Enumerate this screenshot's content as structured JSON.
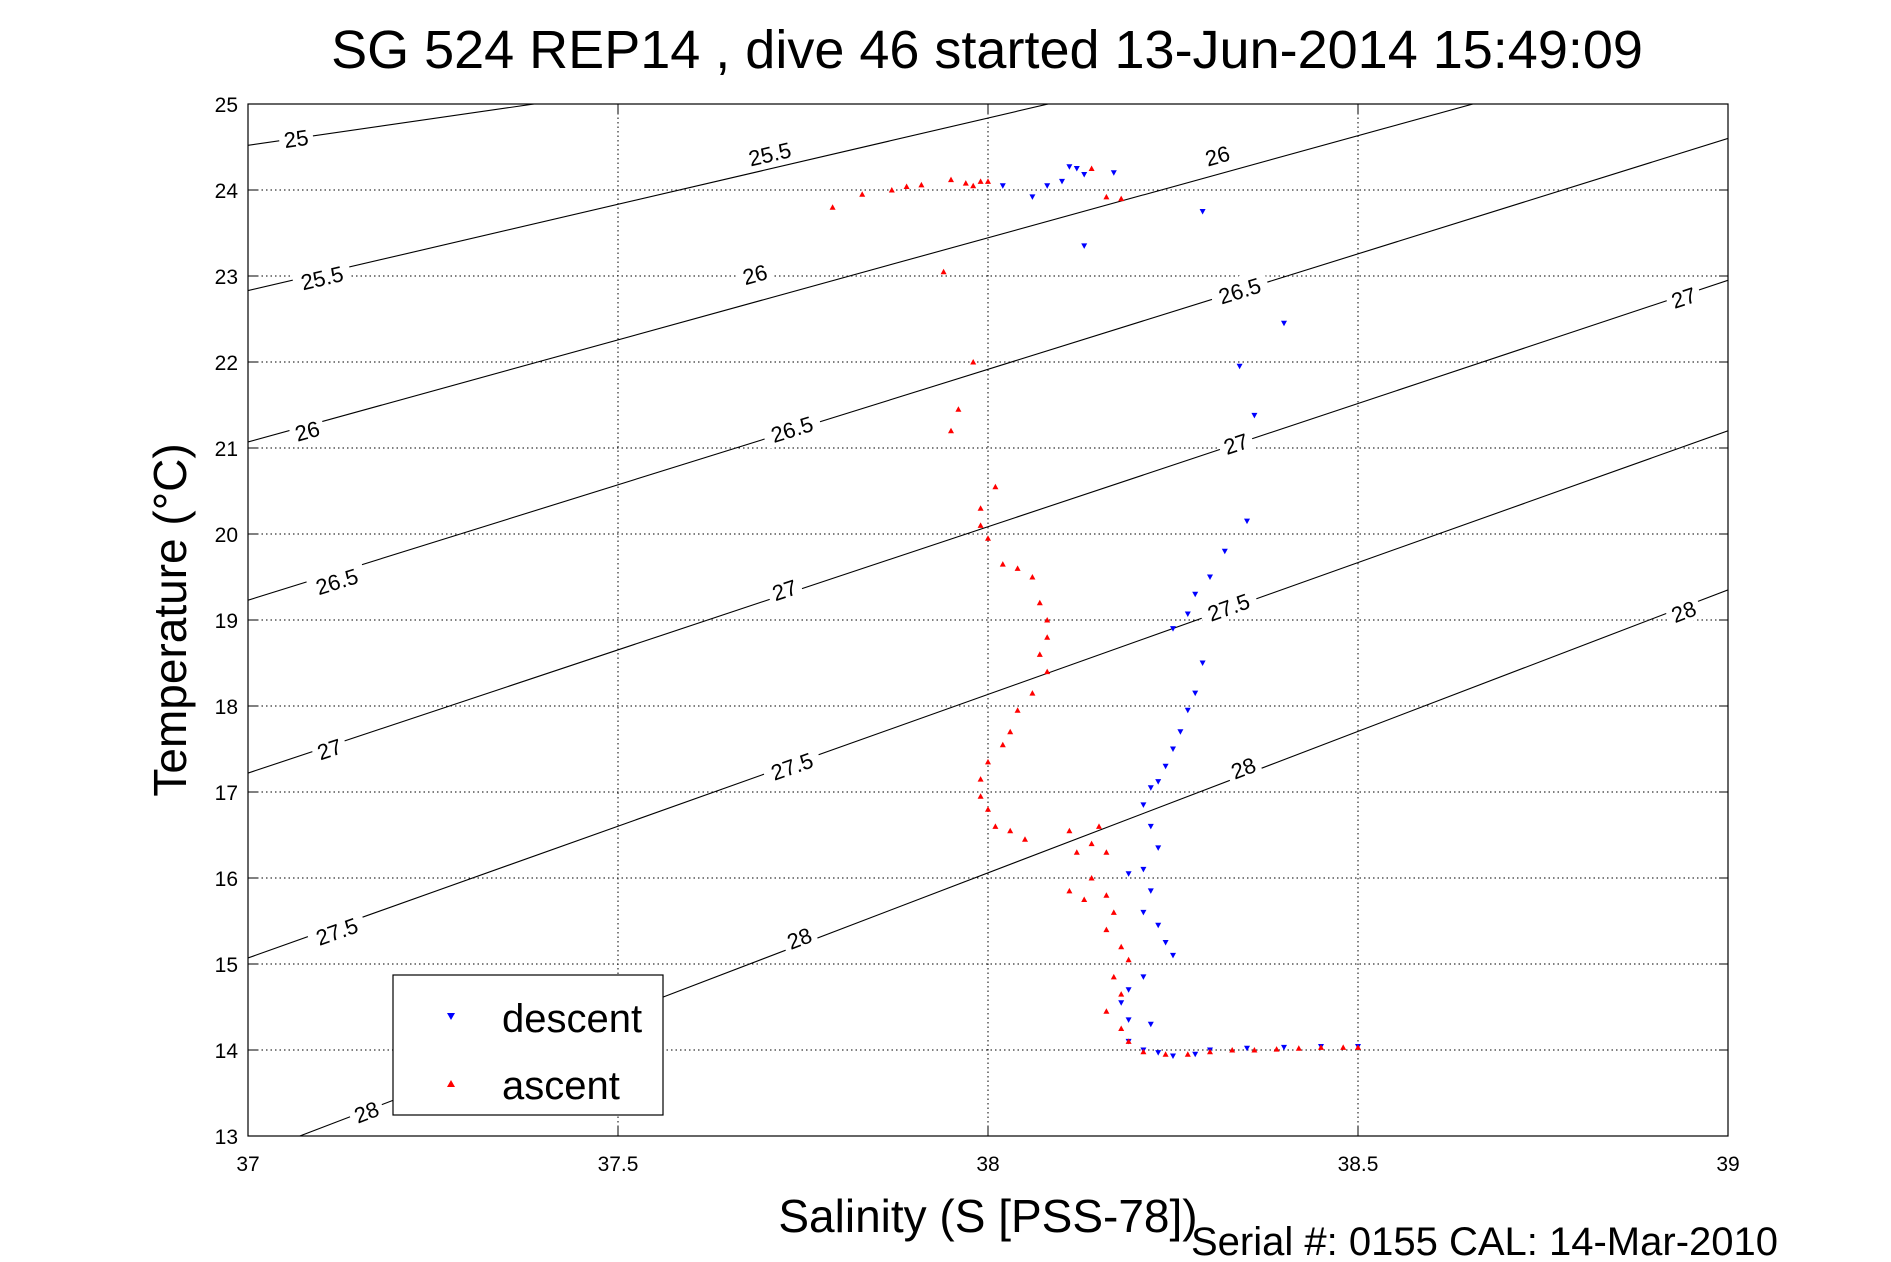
{
  "chart_data": {
    "type": "scatter",
    "title": "SG 524   REP14  , dive 46 started 13-Jun-2014 15:49:09",
    "xlabel": "Salinity (S [PSS-78])",
    "ylabel": "Temperature (°C)",
    "footer": "Serial #: 0155  CAL: 14-Mar-2010",
    "xlim": [
      37,
      39
    ],
    "ylim": [
      13,
      25
    ],
    "x_ticks": [
      37,
      37.5,
      38,
      38.5,
      39
    ],
    "x_tick_labels": [
      "37",
      "37.5",
      "38",
      "38.5",
      "39"
    ],
    "y_ticks": [
      13,
      14,
      15,
      16,
      17,
      18,
      19,
      20,
      21,
      22,
      23,
      24,
      25
    ],
    "y_tick_labels": [
      "13",
      "14",
      "15",
      "16",
      "17",
      "18",
      "19",
      "20",
      "21",
      "22",
      "23",
      "24",
      "25"
    ],
    "grid": true,
    "legend_position": "bottom-left",
    "density_contours": [
      {
        "label": "25",
        "points": [
          [
            37,
            24.52
          ],
          [
            37.95,
            25.7
          ]
        ],
        "label_positions": [
          [
            37.065,
            24.6
          ]
        ]
      },
      {
        "label": "25.5",
        "points": [
          [
            37,
            22.83
          ],
          [
            38.43,
            25.7
          ]
        ],
        "label_positions": [
          [
            37.1,
            22.98
          ],
          [
            37.705,
            24.42
          ]
        ]
      },
      {
        "label": "26",
        "points": [
          [
            37,
            21.07
          ],
          [
            38.95,
            25.7
          ]
        ],
        "label_positions": [
          [
            37.08,
            21.2
          ],
          [
            37.685,
            23.02
          ],
          [
            38.31,
            24.4
          ]
        ]
      },
      {
        "label": "26.5",
        "points": [
          [
            37,
            19.23
          ],
          [
            39,
            24.6
          ]
        ],
        "label_positions": [
          [
            37.12,
            19.45
          ],
          [
            37.735,
            21.22
          ],
          [
            38.34,
            22.83
          ]
        ]
      },
      {
        "label": "27",
        "points": [
          [
            37,
            17.22
          ],
          [
            39,
            22.95
          ]
        ],
        "label_positions": [
          [
            37.11,
            17.5
          ],
          [
            37.725,
            19.35
          ],
          [
            38.335,
            21.05
          ],
          [
            38.94,
            22.75
          ]
        ]
      },
      {
        "label": "27.5",
        "points": [
          [
            37,
            15.07
          ],
          [
            39,
            21.2
          ]
        ],
        "label_positions": [
          [
            37.12,
            15.38
          ],
          [
            37.735,
            17.3
          ],
          [
            38.325,
            19.15
          ]
        ]
      },
      {
        "label": "28",
        "points": [
          [
            37.07,
            13
          ],
          [
            39,
            19.35
          ]
        ],
        "label_positions": [
          [
            37.16,
            13.28
          ],
          [
            37.745,
            15.3
          ],
          [
            38.345,
            17.28
          ],
          [
            38.94,
            19.1
          ]
        ]
      }
    ],
    "series": [
      {
        "name": "descent",
        "color": "#0000ff",
        "marker": "triangle-down",
        "points": [
          [
            38.11,
            24.27
          ],
          [
            38.12,
            24.25
          ],
          [
            38.13,
            24.18
          ],
          [
            38.1,
            24.1
          ],
          [
            38.17,
            24.2
          ],
          [
            38.08,
            24.05
          ],
          [
            38.06,
            23.92
          ],
          [
            38.02,
            24.05
          ],
          [
            38.29,
            23.75
          ],
          [
            38.13,
            23.35
          ],
          [
            38.4,
            22.45
          ],
          [
            38.34,
            21.95
          ],
          [
            38.36,
            21.38
          ],
          [
            38.35,
            20.15
          ],
          [
            38.32,
            19.8
          ],
          [
            38.3,
            19.5
          ],
          [
            38.28,
            19.3
          ],
          [
            38.27,
            19.07
          ],
          [
            38.25,
            18.9
          ],
          [
            38.29,
            18.5
          ],
          [
            38.28,
            18.15
          ],
          [
            38.27,
            17.95
          ],
          [
            38.26,
            17.7
          ],
          [
            38.25,
            17.5
          ],
          [
            38.24,
            17.3
          ],
          [
            38.23,
            17.12
          ],
          [
            38.22,
            17.05
          ],
          [
            38.21,
            16.85
          ],
          [
            38.22,
            16.6
          ],
          [
            38.23,
            16.35
          ],
          [
            38.21,
            16.1
          ],
          [
            38.19,
            16.05
          ],
          [
            38.22,
            15.85
          ],
          [
            38.21,
            15.6
          ],
          [
            38.23,
            15.45
          ],
          [
            38.24,
            15.25
          ],
          [
            38.25,
            15.1
          ],
          [
            38.21,
            14.85
          ],
          [
            38.19,
            14.7
          ],
          [
            38.18,
            14.55
          ],
          [
            38.19,
            14.35
          ],
          [
            38.22,
            14.3
          ],
          [
            38.19,
            14.1
          ],
          [
            38.21,
            14.0
          ],
          [
            38.23,
            13.97
          ],
          [
            38.25,
            13.93
          ],
          [
            38.28,
            13.95
          ],
          [
            38.3,
            14.0
          ],
          [
            38.35,
            14.02
          ],
          [
            38.4,
            14.03
          ],
          [
            38.45,
            14.04
          ],
          [
            38.5,
            14.04
          ]
        ]
      },
      {
        "name": "ascent",
        "color": "#ff0000",
        "marker": "triangle-up",
        "points": [
          [
            37.79,
            23.8
          ],
          [
            37.83,
            23.95
          ],
          [
            37.87,
            24.0
          ],
          [
            37.89,
            24.04
          ],
          [
            37.91,
            24.06
          ],
          [
            37.95,
            24.12
          ],
          [
            37.97,
            24.08
          ],
          [
            37.98,
            24.05
          ],
          [
            38.0,
            24.1
          ],
          [
            37.99,
            24.1
          ],
          [
            38.14,
            24.25
          ],
          [
            38.16,
            23.92
          ],
          [
            38.18,
            23.9
          ],
          [
            37.94,
            23.05
          ],
          [
            37.98,
            22.0
          ],
          [
            37.96,
            21.45
          ],
          [
            37.95,
            21.2
          ],
          [
            38.01,
            20.55
          ],
          [
            37.99,
            20.3
          ],
          [
            37.99,
            20.1
          ],
          [
            38.0,
            19.95
          ],
          [
            38.02,
            19.65
          ],
          [
            38.04,
            19.6
          ],
          [
            38.06,
            19.5
          ],
          [
            38.07,
            19.2
          ],
          [
            38.08,
            19.0
          ],
          [
            38.08,
            18.8
          ],
          [
            38.07,
            18.6
          ],
          [
            38.08,
            18.4
          ],
          [
            38.06,
            18.15
          ],
          [
            38.04,
            17.95
          ],
          [
            38.03,
            17.7
          ],
          [
            38.02,
            17.55
          ],
          [
            38.0,
            17.35
          ],
          [
            37.99,
            17.15
          ],
          [
            37.99,
            16.95
          ],
          [
            38.0,
            16.8
          ],
          [
            38.01,
            16.6
          ],
          [
            38.03,
            16.55
          ],
          [
            38.05,
            16.45
          ],
          [
            38.11,
            16.55
          ],
          [
            38.12,
            16.3
          ],
          [
            38.14,
            16.4
          ],
          [
            38.15,
            16.6
          ],
          [
            38.16,
            16.3
          ],
          [
            38.14,
            16.0
          ],
          [
            38.11,
            15.85
          ],
          [
            38.13,
            15.75
          ],
          [
            38.16,
            15.8
          ],
          [
            38.17,
            15.6
          ],
          [
            38.16,
            15.4
          ],
          [
            38.18,
            15.2
          ],
          [
            38.19,
            15.05
          ],
          [
            38.17,
            14.85
          ],
          [
            38.18,
            14.65
          ],
          [
            38.16,
            14.45
          ],
          [
            38.18,
            14.25
          ],
          [
            38.19,
            14.1
          ],
          [
            38.21,
            13.98
          ],
          [
            38.24,
            13.95
          ],
          [
            38.27,
            13.95
          ],
          [
            38.3,
            13.98
          ],
          [
            38.33,
            14.0
          ],
          [
            38.36,
            14.0
          ],
          [
            38.39,
            14.01
          ],
          [
            38.42,
            14.02
          ],
          [
            38.45,
            14.03
          ],
          [
            38.48,
            14.03
          ],
          [
            38.5,
            14.03
          ]
        ]
      }
    ]
  }
}
